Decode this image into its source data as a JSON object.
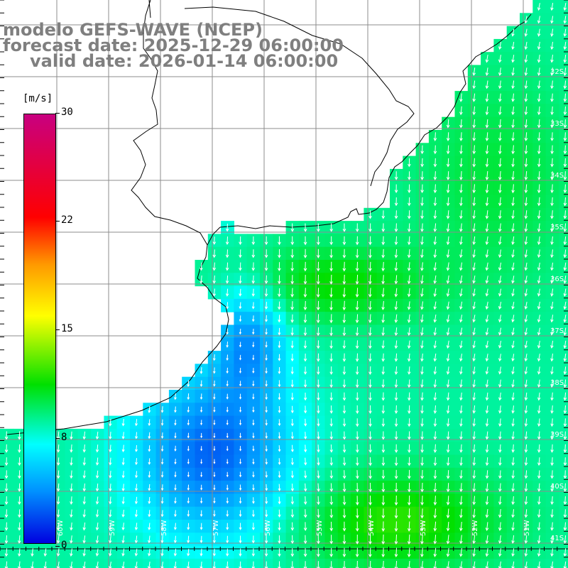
{
  "header": {
    "line1": "modelo GEFS-WAVE (NCEP)",
    "line2": "forecast date: 2025-12-29 06:00:00",
    "line3": "valid date: 2026-01-14 06:00:00"
  },
  "colorbar": {
    "unit": "[m/s]",
    "ticks": [
      {
        "label": "30",
        "value": 30
      },
      {
        "label": "22",
        "value": 22
      },
      {
        "label": "15",
        "value": 15
      },
      {
        "label": "8",
        "value": 8
      },
      {
        "label": "0",
        "value": 0
      }
    ],
    "colors": [
      "#0000e0",
      "#0090ff",
      "#00ffff",
      "#00e000",
      "#ffff00",
      "#ff9900",
      "#ff0000",
      "#c80080"
    ]
  },
  "map": {
    "lat_labels": [
      "32S",
      "33S",
      "34S",
      "35S",
      "36S",
      "37S",
      "38S",
      "39S",
      "40S",
      "41S"
    ],
    "lon_labels": [
      "60W",
      "59W",
      "58W",
      "57W",
      "56W",
      "55W",
      "54W",
      "53W",
      "52W",
      "51W"
    ],
    "colors": {
      "land": "#ffffff",
      "grid": "#8c8c8c",
      "coast": "#000000",
      "arrow": "#ffffff"
    }
  }
}
